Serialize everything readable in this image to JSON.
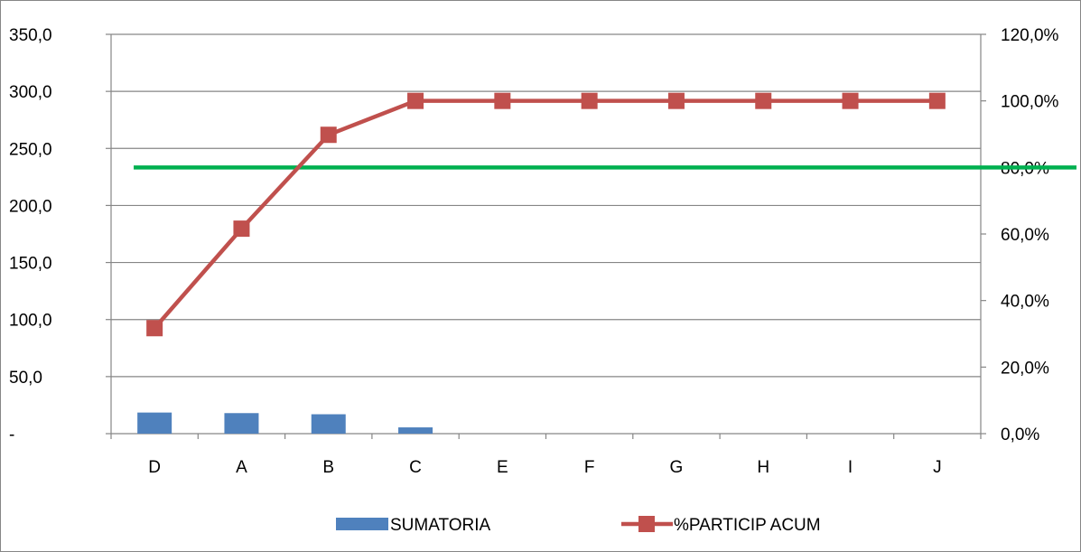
{
  "chart_data": {
    "type": "bar",
    "categories": [
      "D",
      "A",
      "B",
      "C",
      "E",
      "F",
      "G",
      "H",
      "I",
      "J"
    ],
    "series": [
      {
        "name": "SUMATORIA",
        "type": "bar",
        "axis": "left",
        "color": "#4F81BD",
        "values": [
          18.5,
          18.0,
          17.0,
          5.5,
          0,
          0,
          0,
          0,
          0,
          0
        ]
      },
      {
        "name": "%PARTICIP ACUM",
        "type": "line",
        "axis": "right",
        "color": "#C0504D",
        "marker": "square",
        "values": [
          31.7,
          61.6,
          89.8,
          100,
          100,
          100,
          100,
          100,
          100,
          100
        ]
      }
    ],
    "reference_line": {
      "axis": "right",
      "value": 80,
      "color": "#00B050",
      "from_category_index": 0.26
    },
    "left_axis": {
      "ylim": [
        0,
        350
      ],
      "ticks": [
        0,
        50,
        100,
        150,
        200,
        250,
        300,
        350
      ],
      "tick_labels": [
        "-",
        "50,0",
        "100,0",
        "150,0",
        "200,0",
        "250,0",
        "300,0",
        "350,0"
      ]
    },
    "right_axis": {
      "ylim": [
        0,
        120
      ],
      "ticks": [
        0,
        20,
        40,
        60,
        80,
        100,
        120
      ],
      "tick_labels": [
        "0,0%",
        "20,0%",
        "40,0%",
        "60,0%",
        "80,0%",
        "100,0%",
        "120,0%"
      ]
    },
    "grid": true,
    "legend_position": "bottom",
    "gridline_color": "#868686"
  }
}
